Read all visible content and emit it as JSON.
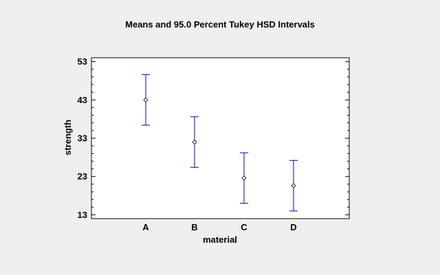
{
  "chart_data": {
    "type": "scatter",
    "title": "Means and 95.0 Percent Tukey HSD Intervals",
    "xlabel": "material",
    "ylabel": "strength",
    "categories": [
      "A",
      "B",
      "C",
      "D"
    ],
    "ylim": [
      12,
      54
    ],
    "yticks": [
      13,
      23,
      33,
      43,
      53
    ],
    "series": [
      {
        "means": [
          43.0,
          32.0,
          22.6,
          20.6
        ],
        "lower": [
          36.4,
          25.4,
          16.0,
          14.0
        ],
        "upper": [
          49.6,
          38.6,
          29.2,
          27.2
        ]
      }
    ],
    "colors": {
      "interval": "#0000c0",
      "marker": "#000000",
      "axis": "#000000",
      "background": "#efefef",
      "plot_area": "#ffffff"
    },
    "grid": false
  }
}
